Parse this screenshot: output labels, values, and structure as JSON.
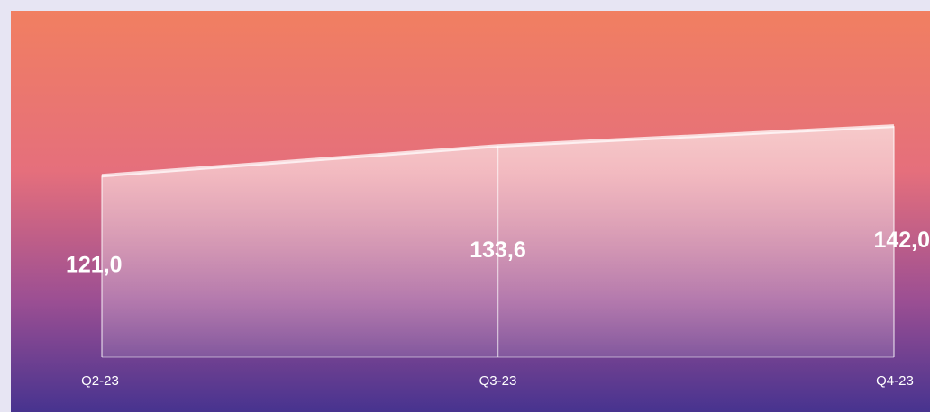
{
  "chart_data": {
    "type": "area",
    "categories": [
      "Q2-23",
      "Q3-23",
      "Q4-23"
    ],
    "values": [
      121.0,
      133.6,
      142.0
    ],
    "value_labels": [
      "121,0",
      "133,6",
      "142,0"
    ],
    "ylim": [
      44,
      160
    ],
    "color": "#ffffff"
  }
}
